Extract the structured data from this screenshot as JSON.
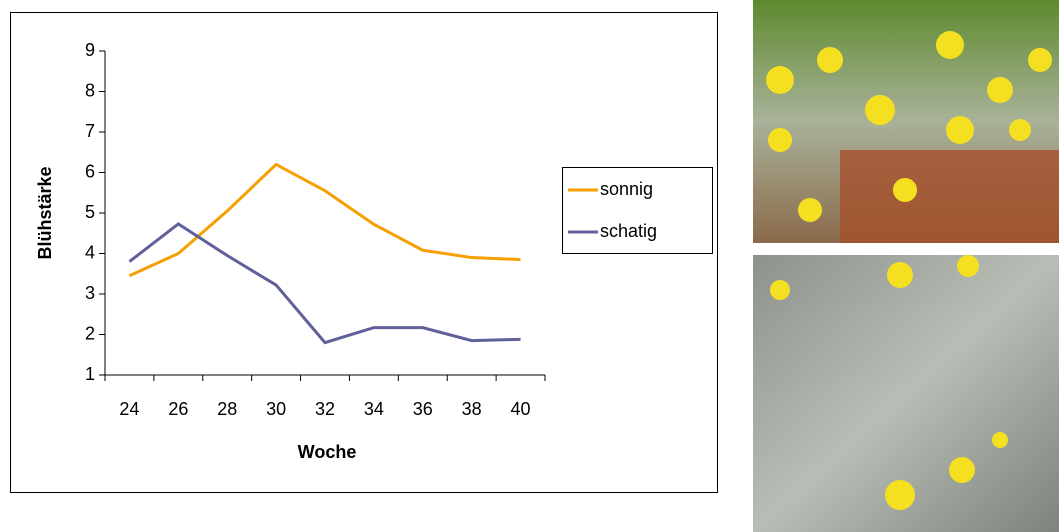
{
  "chart_data": {
    "type": "line",
    "x_label": "Woche",
    "y_label": "Blühstärke",
    "categories": [
      24,
      26,
      28,
      30,
      32,
      34,
      36,
      38,
      40
    ],
    "series": [
      {
        "name": "sonnig",
        "color": "#f5a000",
        "values": [
          3.45,
          4.0,
          5.05,
          6.2,
          5.55,
          4.72,
          4.08,
          3.9,
          3.85
        ]
      },
      {
        "name": "schatig",
        "color": "#60609a",
        "values": [
          3.8,
          4.73,
          3.95,
          3.22,
          1.8,
          2.17,
          2.17,
          1.85,
          1.88
        ]
      }
    ],
    "ylim": [
      1,
      9
    ],
    "yticks": [
      1,
      2,
      3,
      4,
      5,
      6,
      7,
      8,
      9
    ]
  }
}
